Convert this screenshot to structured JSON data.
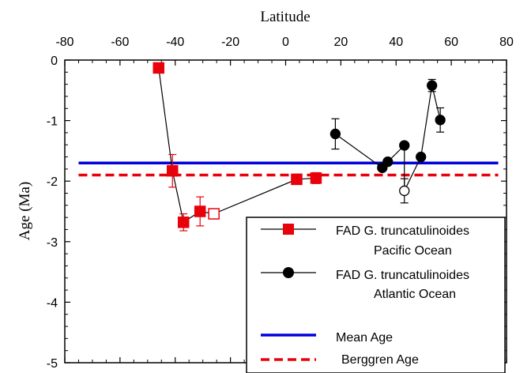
{
  "chart_data": {
    "type": "scatter",
    "title": "",
    "xlabel": "Latitude",
    "ylabel": "Age (Ma)",
    "xlim": [
      -80,
      80
    ],
    "ylim": [
      -5,
      0
    ],
    "x_ticks": [
      -80,
      -60,
      -40,
      -20,
      0,
      20,
      40,
      60,
      80
    ],
    "y_ticks": [
      0,
      -1,
      -2,
      -3,
      -4,
      -5
    ],
    "x_tick_labels": [
      "-80",
      "-60",
      "-40",
      "-20",
      "0",
      "20",
      "40",
      "60",
      "80"
    ],
    "y_tick_labels": [
      "0",
      "-1",
      "-2",
      "-3",
      "-4",
      "-5"
    ],
    "grid": false,
    "legend_position": "bottom-right",
    "series": [
      {
        "name_line1": "FAD G. truncatulinoides",
        "name_line2": "Pacific Ocean",
        "marker": "square",
        "color": "#e8000b",
        "points": [
          {
            "x": -46,
            "y": -0.13,
            "err": 0,
            "filled": true
          },
          {
            "x": -41,
            "y": -1.83,
            "err": 0.27,
            "filled": true
          },
          {
            "x": -37,
            "y": -2.68,
            "err": 0.14,
            "filled": true
          },
          {
            "x": -31,
            "y": -2.5,
            "err": 0.24,
            "filled": true
          },
          {
            "x": -26,
            "y": -2.54,
            "err": 0,
            "filled": false
          },
          {
            "x": 4,
            "y": -1.97,
            "err": 0,
            "filled": true
          },
          {
            "x": 11,
            "y": -1.95,
            "err": 0.09,
            "filled": true
          }
        ]
      },
      {
        "name_line1": "FAD G. truncatulinoides",
        "name_line2": "Atlantic Ocean",
        "marker": "circle",
        "color": "#000000",
        "points": [
          {
            "x": 18,
            "y": -1.22,
            "err": 0.25,
            "filled": true
          },
          {
            "x": 35,
            "y": -1.78,
            "err": 0,
            "filled": true
          },
          {
            "x": 37,
            "y": -1.68,
            "err": 0,
            "filled": true
          },
          {
            "x": 43,
            "y": -1.41,
            "err": 0,
            "filled": true
          },
          {
            "x": 43,
            "y": -2.16,
            "err": 0.2,
            "filled": false
          },
          {
            "x": 49,
            "y": -1.6,
            "err": 0,
            "filled": true
          },
          {
            "x": 53,
            "y": -0.42,
            "err": 0.1,
            "filled": true
          },
          {
            "x": 56,
            "y": -0.99,
            "err": 0.2,
            "filled": true
          }
        ]
      }
    ],
    "reference_lines": [
      {
        "name": "Mean Age",
        "y": -1.7,
        "color": "#0000dd",
        "style": "solid",
        "x_range": [
          -75,
          77
        ]
      },
      {
        "name": "Berggren Age",
        "y": -1.9,
        "color": "#e8000b",
        "style": "dashed",
        "x_range": [
          -75,
          77
        ]
      }
    ]
  }
}
